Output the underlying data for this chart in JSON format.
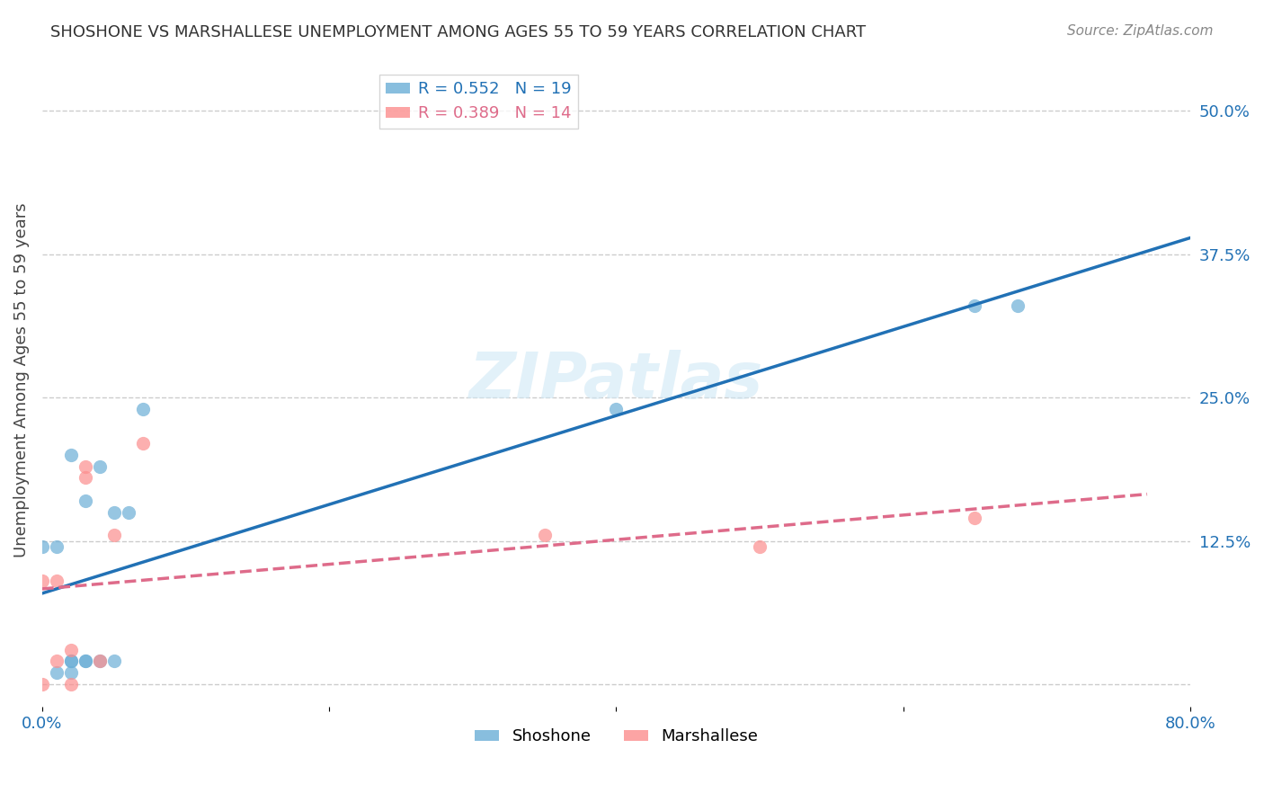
{
  "title": "SHOSHONE VS MARSHALLESE UNEMPLOYMENT AMONG AGES 55 TO 59 YEARS CORRELATION CHART",
  "source": "Source: ZipAtlas.com",
  "xlabel": "",
  "ylabel": "Unemployment Among Ages 55 to 59 years",
  "xlim": [
    0.0,
    0.8
  ],
  "ylim": [
    -0.02,
    0.55
  ],
  "xticks": [
    0.0,
    0.2,
    0.4,
    0.6,
    0.8
  ],
  "xticklabels": [
    "0.0%",
    "",
    "",
    "",
    "80.0%"
  ],
  "ytick_positions": [
    0.0,
    0.125,
    0.25,
    0.375,
    0.5
  ],
  "ytick_labels": [
    "",
    "12.5%",
    "25.0%",
    "37.5%",
    "50.0%"
  ],
  "shoshone_x": [
    0.0,
    0.01,
    0.01,
    0.02,
    0.02,
    0.02,
    0.02,
    0.03,
    0.03,
    0.03,
    0.04,
    0.04,
    0.05,
    0.05,
    0.06,
    0.07,
    0.4,
    0.65,
    0.68
  ],
  "shoshone_y": [
    0.12,
    0.01,
    0.12,
    0.01,
    0.02,
    0.02,
    0.2,
    0.02,
    0.02,
    0.16,
    0.19,
    0.02,
    0.02,
    0.15,
    0.15,
    0.24,
    0.24,
    0.33,
    0.33
  ],
  "marshallese_x": [
    0.0,
    0.0,
    0.01,
    0.01,
    0.02,
    0.02,
    0.03,
    0.03,
    0.04,
    0.05,
    0.07,
    0.35,
    0.5,
    0.65
  ],
  "marshallese_y": [
    0.0,
    0.09,
    0.02,
    0.09,
    0.0,
    0.03,
    0.18,
    0.19,
    0.02,
    0.13,
    0.21,
    0.13,
    0.12,
    0.145
  ],
  "shoshone_R": 0.552,
  "shoshone_N": 19,
  "marshallese_R": 0.389,
  "marshallese_N": 14,
  "shoshone_color": "#6baed6",
  "marshallese_color": "#fc8d8d",
  "shoshone_line_color": "#2171b5",
  "marshallese_line_color": "#de6b8a",
  "watermark": "ZIPatlas",
  "background_color": "#ffffff",
  "grid_color": "#cccccc"
}
